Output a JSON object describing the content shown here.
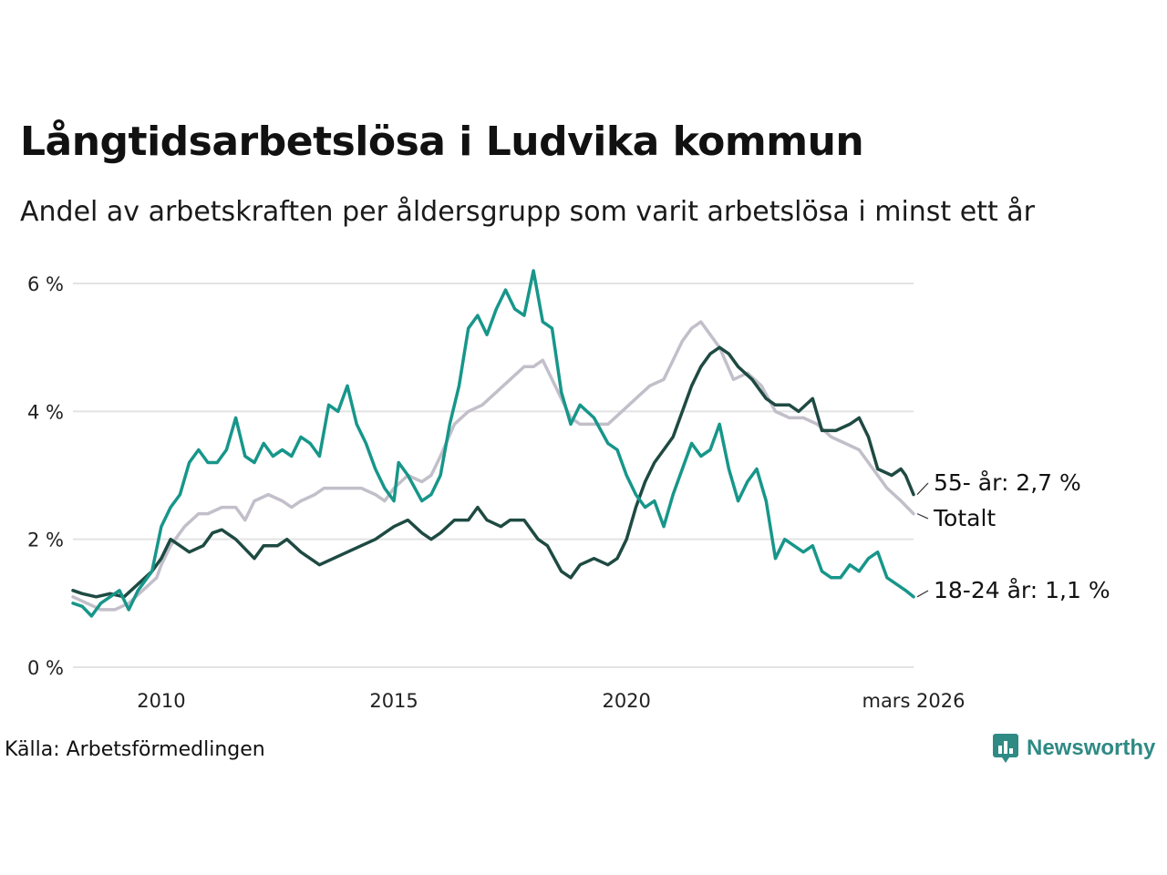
{
  "title": "Långtidsarbetslösa i Ludvika kommun",
  "subtitle": "Andel av arbetskraften per åldersgrupp som varit arbetslösa i minst ett år",
  "source": "Källa: Arbetsförmedlingen",
  "brand": "Newsworthy",
  "colors": {
    "brand": "#2f8a84",
    "series_55": "#1e4a42",
    "series_total": "#c2bfca",
    "series_18_24": "#17968a",
    "grid": "#e3e3e3"
  },
  "chart_data": {
    "type": "line",
    "x_range": [
      2008.1,
      2026.17
    ],
    "ylim": [
      0,
      6.3
    ],
    "y_ticks": [
      0,
      2,
      4,
      6
    ],
    "y_tick_labels": [
      "0 %",
      "2 %",
      "4 %",
      "6 %"
    ],
    "x_ticks": [
      2010,
      2015,
      2020,
      2026.17
    ],
    "x_tick_labels": [
      "2010",
      "2015",
      "2020",
      "mars 2026"
    ],
    "grid": true,
    "series": [
      {
        "name": "Totalt",
        "label": "Totalt",
        "color_key": "series_total",
        "points": [
          [
            2008.1,
            1.1
          ],
          [
            2008.4,
            1.0
          ],
          [
            2008.7,
            0.9
          ],
          [
            2009.0,
            0.9
          ],
          [
            2009.3,
            1.0
          ],
          [
            2009.6,
            1.2
          ],
          [
            2009.9,
            1.4
          ],
          [
            2010.0,
            1.6
          ],
          [
            2010.2,
            1.9
          ],
          [
            2010.5,
            2.2
          ],
          [
            2010.8,
            2.4
          ],
          [
            2011.0,
            2.4
          ],
          [
            2011.3,
            2.5
          ],
          [
            2011.6,
            2.5
          ],
          [
            2011.8,
            2.3
          ],
          [
            2012.0,
            2.6
          ],
          [
            2012.3,
            2.7
          ],
          [
            2012.6,
            2.6
          ],
          [
            2012.8,
            2.5
          ],
          [
            2013.0,
            2.6
          ],
          [
            2013.3,
            2.7
          ],
          [
            2013.5,
            2.8
          ],
          [
            2013.8,
            2.8
          ],
          [
            2014.0,
            2.8
          ],
          [
            2014.3,
            2.8
          ],
          [
            2014.6,
            2.7
          ],
          [
            2014.8,
            2.6
          ],
          [
            2015.0,
            2.8
          ],
          [
            2015.3,
            3.0
          ],
          [
            2015.6,
            2.9
          ],
          [
            2015.8,
            3.0
          ],
          [
            2016.0,
            3.3
          ],
          [
            2016.3,
            3.8
          ],
          [
            2016.6,
            4.0
          ],
          [
            2016.9,
            4.1
          ],
          [
            2017.2,
            4.3
          ],
          [
            2017.5,
            4.5
          ],
          [
            2017.8,
            4.7
          ],
          [
            2018.0,
            4.7
          ],
          [
            2018.2,
            4.8
          ],
          [
            2018.4,
            4.5
          ],
          [
            2018.6,
            4.2
          ],
          [
            2018.8,
            3.9
          ],
          [
            2019.0,
            3.8
          ],
          [
            2019.3,
            3.8
          ],
          [
            2019.6,
            3.8
          ],
          [
            2019.9,
            4.0
          ],
          [
            2020.2,
            4.2
          ],
          [
            2020.5,
            4.4
          ],
          [
            2020.8,
            4.5
          ],
          [
            2021.0,
            4.8
          ],
          [
            2021.2,
            5.1
          ],
          [
            2021.4,
            5.3
          ],
          [
            2021.6,
            5.4
          ],
          [
            2021.8,
            5.2
          ],
          [
            2022.0,
            5.0
          ],
          [
            2022.3,
            4.5
          ],
          [
            2022.6,
            4.6
          ],
          [
            2022.9,
            4.4
          ],
          [
            2023.2,
            4.0
          ],
          [
            2023.5,
            3.9
          ],
          [
            2023.8,
            3.9
          ],
          [
            2024.1,
            3.8
          ],
          [
            2024.4,
            3.6
          ],
          [
            2024.7,
            3.5
          ],
          [
            2025.0,
            3.4
          ],
          [
            2025.3,
            3.1
          ],
          [
            2025.6,
            2.8
          ],
          [
            2025.9,
            2.6
          ],
          [
            2026.17,
            2.4
          ]
        ]
      },
      {
        "name": "55- år",
        "label": "55- år: 2,7 %",
        "color_key": "series_55",
        "points": [
          [
            2008.1,
            1.2
          ],
          [
            2008.3,
            1.15
          ],
          [
            2008.6,
            1.1
          ],
          [
            2008.9,
            1.15
          ],
          [
            2009.2,
            1.1
          ],
          [
            2009.5,
            1.3
          ],
          [
            2009.8,
            1.5
          ],
          [
            2010.0,
            1.7
          ],
          [
            2010.2,
            2.0
          ],
          [
            2010.4,
            1.9
          ],
          [
            2010.6,
            1.8
          ],
          [
            2010.9,
            1.9
          ],
          [
            2011.1,
            2.1
          ],
          [
            2011.3,
            2.15
          ],
          [
            2011.6,
            2.0
          ],
          [
            2011.8,
            1.85
          ],
          [
            2012.0,
            1.7
          ],
          [
            2012.2,
            1.9
          ],
          [
            2012.5,
            1.9
          ],
          [
            2012.7,
            2.0
          ],
          [
            2013.0,
            1.8
          ],
          [
            2013.2,
            1.7
          ],
          [
            2013.4,
            1.6
          ],
          [
            2013.7,
            1.7
          ],
          [
            2014.0,
            1.8
          ],
          [
            2014.3,
            1.9
          ],
          [
            2014.6,
            2.0
          ],
          [
            2014.8,
            2.1
          ],
          [
            2015.0,
            2.2
          ],
          [
            2015.3,
            2.3
          ],
          [
            2015.6,
            2.1
          ],
          [
            2015.8,
            2.0
          ],
          [
            2016.0,
            2.1
          ],
          [
            2016.3,
            2.3
          ],
          [
            2016.6,
            2.3
          ],
          [
            2016.8,
            2.5
          ],
          [
            2017.0,
            2.3
          ],
          [
            2017.3,
            2.2
          ],
          [
            2017.5,
            2.3
          ],
          [
            2017.8,
            2.3
          ],
          [
            2018.1,
            2.0
          ],
          [
            2018.3,
            1.9
          ],
          [
            2018.6,
            1.5
          ],
          [
            2018.8,
            1.4
          ],
          [
            2019.0,
            1.6
          ],
          [
            2019.3,
            1.7
          ],
          [
            2019.6,
            1.6
          ],
          [
            2019.8,
            1.7
          ],
          [
            2020.0,
            2.0
          ],
          [
            2020.2,
            2.5
          ],
          [
            2020.4,
            2.9
          ],
          [
            2020.6,
            3.2
          ],
          [
            2020.8,
            3.4
          ],
          [
            2021.0,
            3.6
          ],
          [
            2021.2,
            4.0
          ],
          [
            2021.4,
            4.4
          ],
          [
            2021.6,
            4.7
          ],
          [
            2021.8,
            4.9
          ],
          [
            2022.0,
            5.0
          ],
          [
            2022.2,
            4.9
          ],
          [
            2022.4,
            4.7
          ],
          [
            2022.7,
            4.5
          ],
          [
            2023.0,
            4.2
          ],
          [
            2023.2,
            4.1
          ],
          [
            2023.5,
            4.1
          ],
          [
            2023.7,
            4.0
          ],
          [
            2024.0,
            4.2
          ],
          [
            2024.2,
            3.7
          ],
          [
            2024.5,
            3.7
          ],
          [
            2024.8,
            3.8
          ],
          [
            2025.0,
            3.9
          ],
          [
            2025.2,
            3.6
          ],
          [
            2025.4,
            3.1
          ],
          [
            2025.7,
            3.0
          ],
          [
            2025.9,
            3.1
          ],
          [
            2026.0,
            3.0
          ],
          [
            2026.17,
            2.7
          ]
        ]
      },
      {
        "name": "18-24 år",
        "label": "18-24 år: 1,1 %",
        "color_key": "series_18_24",
        "points": [
          [
            2008.1,
            1.0
          ],
          [
            2008.3,
            0.95
          ],
          [
            2008.5,
            0.8
          ],
          [
            2008.7,
            1.0
          ],
          [
            2008.9,
            1.1
          ],
          [
            2009.1,
            1.2
          ],
          [
            2009.3,
            0.9
          ],
          [
            2009.5,
            1.2
          ],
          [
            2009.8,
            1.5
          ],
          [
            2010.0,
            2.2
          ],
          [
            2010.2,
            2.5
          ],
          [
            2010.4,
            2.7
          ],
          [
            2010.6,
            3.2
          ],
          [
            2010.8,
            3.4
          ],
          [
            2011.0,
            3.2
          ],
          [
            2011.2,
            3.2
          ],
          [
            2011.4,
            3.4
          ],
          [
            2011.6,
            3.9
          ],
          [
            2011.8,
            3.3
          ],
          [
            2012.0,
            3.2
          ],
          [
            2012.2,
            3.5
          ],
          [
            2012.4,
            3.3
          ],
          [
            2012.6,
            3.4
          ],
          [
            2012.8,
            3.3
          ],
          [
            2013.0,
            3.6
          ],
          [
            2013.2,
            3.5
          ],
          [
            2013.4,
            3.3
          ],
          [
            2013.6,
            4.1
          ],
          [
            2013.8,
            4.0
          ],
          [
            2014.0,
            4.4
          ],
          [
            2014.2,
            3.8
          ],
          [
            2014.4,
            3.5
          ],
          [
            2014.6,
            3.1
          ],
          [
            2014.8,
            2.8
          ],
          [
            2015.0,
            2.6
          ],
          [
            2015.1,
            3.2
          ],
          [
            2015.3,
            3.0
          ],
          [
            2015.6,
            2.6
          ],
          [
            2015.8,
            2.7
          ],
          [
            2016.0,
            3.0
          ],
          [
            2016.2,
            3.8
          ],
          [
            2016.4,
            4.4
          ],
          [
            2016.6,
            5.3
          ],
          [
            2016.8,
            5.5
          ],
          [
            2017.0,
            5.2
          ],
          [
            2017.2,
            5.6
          ],
          [
            2017.4,
            5.9
          ],
          [
            2017.6,
            5.6
          ],
          [
            2017.8,
            5.5
          ],
          [
            2018.0,
            6.2
          ],
          [
            2018.2,
            5.4
          ],
          [
            2018.4,
            5.3
          ],
          [
            2018.6,
            4.3
          ],
          [
            2018.8,
            3.8
          ],
          [
            2019.0,
            4.1
          ],
          [
            2019.3,
            3.9
          ],
          [
            2019.6,
            3.5
          ],
          [
            2019.8,
            3.4
          ],
          [
            2020.0,
            3.0
          ],
          [
            2020.2,
            2.7
          ],
          [
            2020.4,
            2.5
          ],
          [
            2020.6,
            2.6
          ],
          [
            2020.8,
            2.2
          ],
          [
            2021.0,
            2.7
          ],
          [
            2021.2,
            3.1
          ],
          [
            2021.4,
            3.5
          ],
          [
            2021.6,
            3.3
          ],
          [
            2021.8,
            3.4
          ],
          [
            2022.0,
            3.8
          ],
          [
            2022.2,
            3.1
          ],
          [
            2022.4,
            2.6
          ],
          [
            2022.6,
            2.9
          ],
          [
            2022.8,
            3.1
          ],
          [
            2023.0,
            2.6
          ],
          [
            2023.2,
            1.7
          ],
          [
            2023.4,
            2.0
          ],
          [
            2023.6,
            1.9
          ],
          [
            2023.8,
            1.8
          ],
          [
            2024.0,
            1.9
          ],
          [
            2024.2,
            1.5
          ],
          [
            2024.4,
            1.4
          ],
          [
            2024.6,
            1.4
          ],
          [
            2024.8,
            1.6
          ],
          [
            2025.0,
            1.5
          ],
          [
            2025.2,
            1.7
          ],
          [
            2025.4,
            1.8
          ],
          [
            2025.6,
            1.4
          ],
          [
            2025.8,
            1.3
          ],
          [
            2026.0,
            1.2
          ],
          [
            2026.17,
            1.1
          ]
        ]
      }
    ]
  }
}
